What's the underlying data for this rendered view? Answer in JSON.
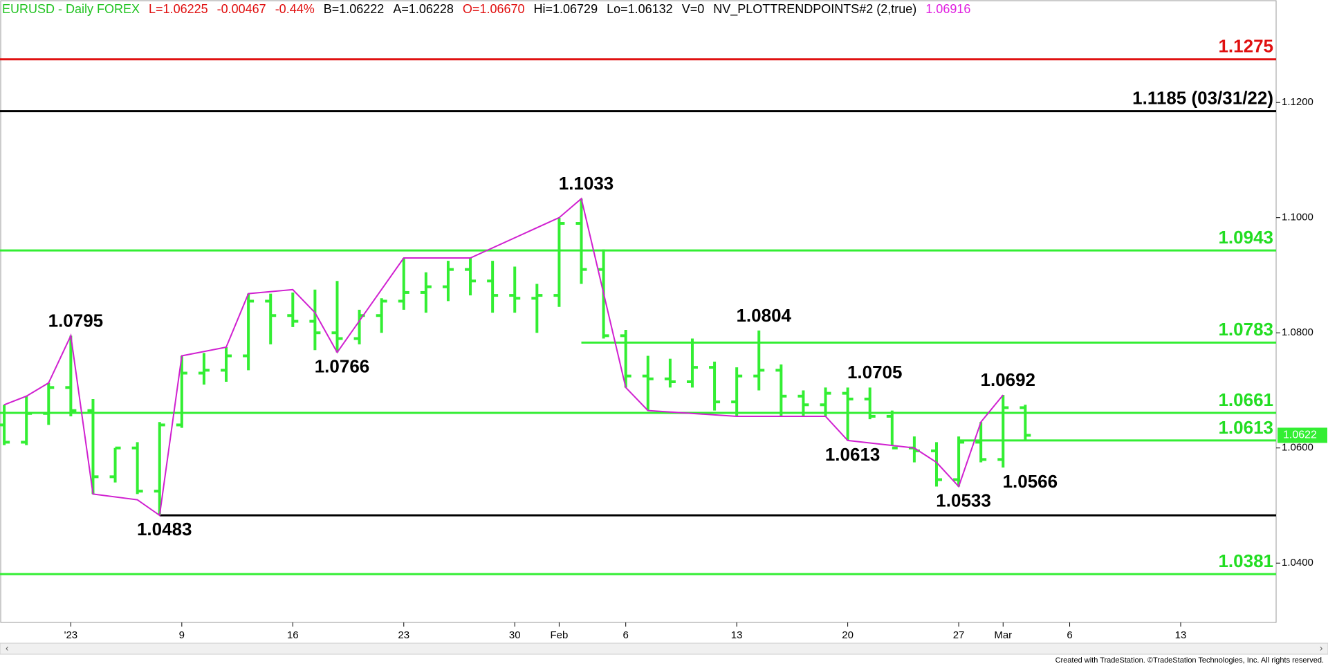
{
  "chart_data": {
    "type": "ohlc",
    "header": [
      {
        "text": "EURUSD - Daily  FOREX",
        "color": "#22c322"
      },
      {
        "text": "L=1.06225",
        "color": "#e01010"
      },
      {
        "text": "-0.00467",
        "color": "#e01010"
      },
      {
        "text": "-0.44%",
        "color": "#e01010"
      },
      {
        "text": "B=1.06222",
        "color": "#000000"
      },
      {
        "text": "A=1.06228",
        "color": "#000000"
      },
      {
        "text": "O=1.06670",
        "color": "#e01010"
      },
      {
        "text": "Hi=1.06729",
        "color": "#000000"
      },
      {
        "text": "Lo=1.06132",
        "color": "#000000"
      },
      {
        "text": "V=0",
        "color": "#000000"
      },
      {
        "text": "NV_PLOTTRENDPOINTS#2 (2,true)",
        "color": "#000000"
      },
      {
        "text": "1.06916",
        "color": "#e020e0"
      }
    ],
    "color": "#33ee33",
    "open": [
      1.064,
      1.061,
      1.066,
      1.0705,
      1.0665,
      1.055,
      1.06,
      1.0525,
      1.064,
      1.073,
      1.0735,
      1.076,
      1.0855,
      1.083,
      1.082,
      1.08,
      1.079,
      1.083,
      1.0855,
      1.087,
      1.088,
      1.091,
      1.089,
      1.0865,
      1.086,
      1.0865,
      1.099,
      1.091,
      1.0795,
      1.0725,
      1.072,
      1.0715,
      1.074,
      1.068,
      1.0725,
      1.0735,
      1.069,
      1.0675,
      1.0695,
      1.0685,
      1.0655,
      1.06,
      1.0595,
      1.0545,
      1.061,
      1.058,
      1.067
    ],
    "high": [
      1.0675,
      1.069,
      1.0713,
      1.0795,
      1.0685,
      1.06,
      1.061,
      1.0645,
      1.076,
      1.0765,
      1.0775,
      1.0868,
      1.0868,
      1.087,
      1.0875,
      1.089,
      1.084,
      1.086,
      1.093,
      1.0905,
      1.0925,
      1.093,
      1.0925,
      1.0915,
      1.0885,
      1.1,
      1.1033,
      1.0945,
      1.0805,
      1.076,
      1.0755,
      1.079,
      1.075,
      1.074,
      1.0804,
      1.0745,
      1.07,
      1.0705,
      1.0705,
      1.0705,
      1.0665,
      1.062,
      1.061,
      1.062,
      1.0645,
      1.0692,
      1.0675
    ],
    "low": [
      1.0605,
      1.0605,
      1.064,
      1.0655,
      1.052,
      1.054,
      1.052,
      1.0483,
      1.0635,
      1.071,
      1.0715,
      1.0735,
      1.078,
      1.081,
      1.077,
      1.0766,
      1.078,
      1.08,
      1.084,
      1.0835,
      1.0855,
      1.0865,
      1.0835,
      1.0835,
      1.08,
      1.0845,
      1.0885,
      1.079,
      1.0705,
      1.0665,
      1.0705,
      1.0705,
      1.0665,
      1.0655,
      1.07,
      1.0655,
      1.0655,
      1.0655,
      1.0613,
      1.065,
      1.0605,
      1.0575,
      1.0533,
      1.0533,
      1.0575,
      1.0566,
      1.0613
    ],
    "close": [
      1.061,
      1.066,
      1.0705,
      1.0665,
      1.055,
      1.06,
      1.0525,
      1.064,
      1.073,
      1.0735,
      1.076,
      1.0855,
      1.083,
      1.082,
      1.08,
      1.079,
      1.083,
      1.0855,
      1.087,
      1.088,
      1.091,
      1.089,
      1.0865,
      1.086,
      1.0865,
      1.099,
      1.091,
      1.0795,
      1.0725,
      1.072,
      1.0715,
      1.074,
      1.068,
      1.0725,
      1.0735,
      1.069,
      1.0675,
      1.0695,
      1.0685,
      1.0655,
      1.06,
      1.0595,
      1.0545,
      1.061,
      1.058,
      1.067,
      1.0622
    ],
    "trend": {
      "color": "#d020d0",
      "x": [
        0,
        1,
        2,
        3,
        4,
        6,
        7,
        8,
        10,
        11,
        13,
        14,
        15,
        18,
        21,
        25,
        26,
        28,
        29,
        33,
        37,
        38,
        41,
        42,
        43,
        44,
        45
      ],
      "values": [
        1.0675,
        1.069,
        1.0713,
        1.0795,
        1.052,
        1.051,
        1.0483,
        1.076,
        1.0775,
        1.0868,
        1.0875,
        1.0835,
        1.0766,
        1.093,
        1.093,
        1.1,
        1.1033,
        1.0705,
        1.0665,
        1.0655,
        1.0655,
        1.0613,
        1.06,
        1.0575,
        1.0533,
        1.0645,
        1.0692
      ]
    },
    "levels": [
      {
        "value": 1.1275,
        "label": "1.1275",
        "color": "#e01010",
        "from": -0.19
      },
      {
        "value": 1.1185,
        "label": "1.1185 (03/31/22)",
        "color": "#000000",
        "from": -0.19
      },
      {
        "value": 1.0943,
        "label": "1.0943",
        "color": "#33ee33",
        "from": -0.19
      },
      {
        "value": 1.0783,
        "label": "1.0783",
        "color": "#33ee33",
        "from": 26
      },
      {
        "value": 1.0661,
        "label": "1.0661",
        "color": "#33ee33",
        "from": -0.19
      },
      {
        "value": 1.0613,
        "label": "1.0613",
        "color": "#33ee33",
        "from": 43
      },
      {
        "value": 1.0483,
        "color": "#000000",
        "from": 7
      },
      {
        "value": 1.0381,
        "label": "1.0381",
        "color": "#33ee33",
        "from": -0.19
      }
    ],
    "annotations": [
      {
        "label": "1.0795",
        "x": 3,
        "value": 1.0795,
        "pos": "above"
      },
      {
        "label": "1.0483",
        "x": 7,
        "value": 1.0483,
        "pos": "below"
      },
      {
        "label": "1.0766",
        "x": 15,
        "value": 1.0766,
        "pos": "below"
      },
      {
        "label": "1.1033",
        "x": 26,
        "value": 1.1033,
        "pos": "above"
      },
      {
        "label": "1.0804",
        "x": 34,
        "value": 1.0804,
        "pos": "above"
      },
      {
        "label": "1.0705",
        "x": 39,
        "value": 1.0705,
        "pos": "above"
      },
      {
        "label": "1.0613",
        "x": 38,
        "value": 1.0613,
        "pos": "below"
      },
      {
        "label": "1.0692",
        "x": 45,
        "value": 1.0692,
        "pos": "above"
      },
      {
        "label": "1.0533",
        "x": 43,
        "value": 1.0533,
        "pos": "below"
      },
      {
        "label": "1.0566",
        "x": 46,
        "value": 1.0566,
        "pos": "below"
      }
    ],
    "last": {
      "value": 1.0622,
      "label": "1.0622"
    },
    "xlim": [
      -0.19,
      57.3
    ],
    "xticks": [
      {
        "value": 3,
        "label": "'23"
      },
      {
        "value": 8,
        "label": "9"
      },
      {
        "value": 13,
        "label": "16"
      },
      {
        "value": 18,
        "label": "23"
      },
      {
        "value": 23,
        "label": "30"
      },
      {
        "value": 25,
        "label": "Feb"
      },
      {
        "value": 28,
        "label": "6"
      },
      {
        "value": 33,
        "label": "13"
      },
      {
        "value": 38,
        "label": "20"
      },
      {
        "value": 43,
        "label": "27"
      },
      {
        "value": 45,
        "label": "Mar"
      },
      {
        "value": 48,
        "label": "6"
      },
      {
        "value": 53,
        "label": "13"
      }
    ],
    "ylim": [
      1.0297,
      1.1378
    ],
    "yticks": [
      {
        "value": 1.04,
        "label": "1.0400"
      },
      {
        "value": 1.06,
        "label": "1.0600"
      },
      {
        "value": 1.08,
        "label": "1.0800"
      },
      {
        "value": 1.1,
        "label": "1.1000"
      },
      {
        "value": 1.12,
        "label": "1.1200"
      }
    ],
    "footer": "Created with TradeStation. ©TradeStation Technologies, Inc. All rights reserved."
  }
}
